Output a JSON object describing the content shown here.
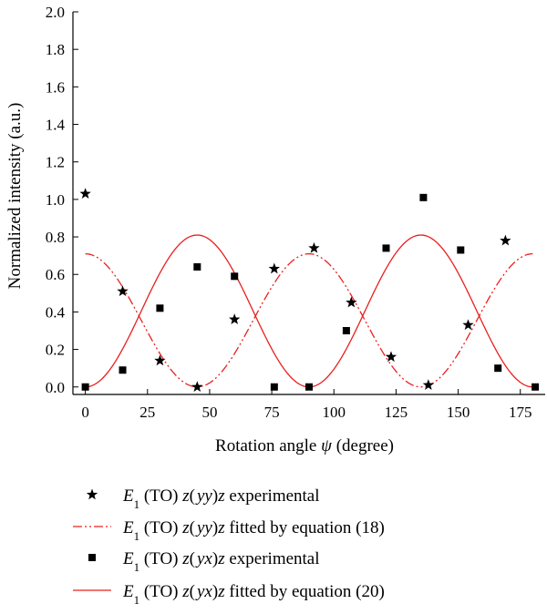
{
  "chart_data": {
    "type": "scatter",
    "xlabel_prefix": "Rotation angle ",
    "xlabel_symbol": "ψ",
    "xlabel_suffix": " (degree)",
    "ylabel": "Normalized intensity (a.u.)",
    "xlim": [
      -5,
      185
    ],
    "ylim": [
      -0.04,
      2.0
    ],
    "xticks": [
      0,
      25,
      50,
      75,
      100,
      125,
      150,
      175
    ],
    "yticks": [
      0.0,
      0.2,
      0.4,
      0.6,
      0.8,
      1.0,
      1.2,
      1.4,
      1.6,
      1.8,
      2.0
    ],
    "grid": false,
    "legend_position": "below",
    "series": [
      {
        "name": "E1 (TO) z(yy)z experimental",
        "legend": {
          "e": "E",
          "sub": "1",
          "mid": " (TO) ",
          "z1": "z",
          "paren_open": "(",
          "p1": "y",
          "p2": "y",
          "paren_close": ")",
          "z2": "z",
          "tail": " experimental"
        },
        "marker": "star",
        "color": "#000000",
        "x": [
          0,
          15,
          30,
          45,
          60,
          76,
          92,
          107,
          123,
          138,
          154,
          169
        ],
        "y": [
          1.03,
          0.51,
          0.14,
          0.0,
          0.36,
          0.63,
          0.74,
          0.45,
          0.16,
          0.01,
          0.33,
          0.78
        ]
      },
      {
        "name": "E1 (TO) z(yy)z fitted by equation (18)",
        "legend": {
          "e": "E",
          "sub": "1",
          "mid": " (TO) ",
          "z1": "z",
          "paren_open": "(",
          "p1": "y",
          "p2": "y",
          "paren_close": ")",
          "z2": "z",
          "tail": " fitted by equation (18)"
        },
        "style": "dash-dot-dot",
        "color": "#e8201e",
        "amplitude": 0.71,
        "formula": "0.71*cos^2(2psi)"
      },
      {
        "name": "E1 (TO) z(yx)z experimental",
        "legend": {
          "e": "E",
          "sub": "1",
          "mid": " (TO) ",
          "z1": "z",
          "paren_open": "(",
          "p1": "y",
          "p2": "x",
          "paren_close": ")",
          "z2": "z",
          "tail": " experimental"
        },
        "marker": "square",
        "color": "#000000",
        "x": [
          0,
          15,
          30,
          45,
          60,
          76,
          90,
          105,
          121,
          136,
          151,
          166,
          181
        ],
        "y": [
          0.0,
          0.09,
          0.42,
          0.64,
          0.59,
          0.0,
          0.0,
          0.3,
          0.74,
          1.01,
          0.73,
          0.1,
          0.0
        ]
      },
      {
        "name": "E1 (TO) z(yx)z fitted by equation (20)",
        "legend": {
          "e": "E",
          "sub": "1",
          "mid": " (TO) ",
          "z1": "z",
          "paren_open": "(",
          "p1": "y",
          "p2": "x",
          "paren_close": ")",
          "z2": "z",
          "tail": " fitted by equation (20)"
        },
        "style": "solid",
        "color": "#e8201e",
        "amplitude": 0.81,
        "formula": "0.81*sin^2(2psi)"
      }
    ]
  }
}
